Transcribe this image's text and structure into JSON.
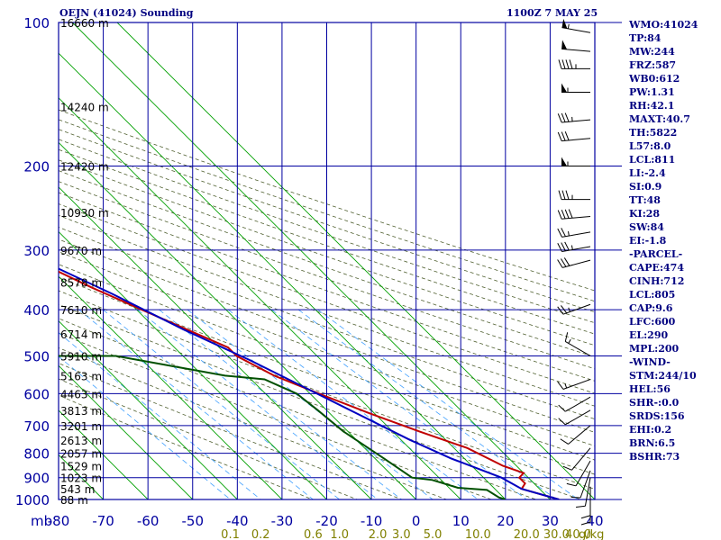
{
  "header": {
    "station": "OEJN (41024) Sounding",
    "time": "1100Z  7 MAY 25"
  },
  "indices": [
    "WMO:41024",
    "TP:84",
    "MW:244",
    "FRZ:587",
    "WB0:612",
    "PW:1.31",
    "RH:42.1",
    "MAXT:40.7",
    "TH:5822",
    "L57:8.0",
    "LCL:811",
    "LI:-2.4",
    "SI:0.9",
    "TT:48",
    "KI:28",
    "SW:84",
    "EI:-1.8",
    "-PARCEL-",
    "CAPE:474",
    "CINH:712",
    "LCL:805",
    "CAP:9.6",
    "LFC:600",
    "EL:290",
    "MPL:200",
    "-WIND-",
    "STM:244/10",
    "HEL:56",
    "SHR-:0.0",
    "SRDS:156",
    "EHI:0.2",
    "BRN:6.5",
    "BSHR:73"
  ],
  "colors": {
    "frame": "#0000a0",
    "isotherm": "#00a000",
    "dry_adiabat": "#506030",
    "mixing_ratio": "#40a0ff",
    "temperature": "#c00000",
    "dewpoint": "#005000",
    "parcel": "#0000c0",
    "index_text": "#000080",
    "mixing_label": "#808000"
  },
  "chart_data": {
    "type": "line",
    "title": "OEJN (41024) Sounding",
    "xlabel": "",
    "ylabel": "mb",
    "x_ticks": [
      -80,
      -70,
      -60,
      -50,
      -40,
      -30,
      -20,
      -10,
      0,
      10,
      20,
      30,
      40
    ],
    "x_tick_labels": [
      "-80",
      "-70",
      "-60",
      "-50",
      "-40",
      "-30",
      "-20",
      "-10",
      "0",
      "10",
      "20",
      "30",
      "40"
    ],
    "pressure_ticks": [
      100,
      200,
      300,
      400,
      500,
      600,
      700,
      800,
      900,
      1000
    ],
    "pressure_tick_labels": [
      "100",
      "200",
      "300",
      "400",
      "500",
      "600",
      "700",
      "800",
      "900",
      "1000"
    ],
    "ylim": [
      100,
      1000
    ],
    "xlim": [
      -80,
      40
    ],
    "y_scale": "log",
    "grid": true,
    "height_labels": [
      {
        "label": "16660 m",
        "p": 100
      },
      {
        "label": "14240 m",
        "p": 150
      },
      {
        "label": "12420 m",
        "p": 200
      },
      {
        "label": "10930 m",
        "p": 250
      },
      {
        "label": "9670 m",
        "p": 300
      },
      {
        "label": "8578 m",
        "p": 350
      },
      {
        "label": "7610 m",
        "p": 400
      },
      {
        "label": "6714 m",
        "p": 450
      },
      {
        "label": "5910 m",
        "p": 500
      },
      {
        "label": "5163 m",
        "p": 550
      },
      {
        "label": "4463 m",
        "p": 600
      },
      {
        "label": "3813 m",
        "p": 650
      },
      {
        "label": "3201 m",
        "p": 700
      },
      {
        "label": "2613 m",
        "p": 750
      },
      {
        "label": "2057 m",
        "p": 800
      },
      {
        "label": "1529 m",
        "p": 850
      },
      {
        "label": "1023 m",
        "p": 900
      },
      {
        "label": "543 m",
        "p": 950
      },
      {
        "label": "88 m",
        "p": 1000
      }
    ],
    "mixing_ratio_labels": [
      "0.1",
      "0.2",
      "0.6",
      "1.0",
      "2.0",
      "3.0",
      "5.0",
      "10.0",
      "20.0",
      "30.0",
      "40.0"
    ],
    "mixing_ratio_unit": "g/kg",
    "series": [
      {
        "id": "temperature",
        "points": [
          {
            "x": -67,
            "p": 100
          },
          {
            "x": -66.5,
            "p": 110
          },
          {
            "x": -65,
            "p": 125
          },
          {
            "x": -56,
            "p": 180
          },
          {
            "x": -52,
            "p": 200
          },
          {
            "x": -48,
            "p": 225
          },
          {
            "x": -40,
            "p": 260
          },
          {
            "x": -35,
            "p": 280
          },
          {
            "x": -31,
            "p": 320
          },
          {
            "x": -25,
            "p": 360
          },
          {
            "x": -16,
            "p": 420
          },
          {
            "x": -8,
            "p": 480
          },
          {
            "x": -8,
            "p": 500
          },
          {
            "x": -4,
            "p": 550
          },
          {
            "x": 2,
            "p": 600
          },
          {
            "x": 9,
            "p": 660
          },
          {
            "x": 16,
            "p": 720
          },
          {
            "x": 23,
            "p": 780
          },
          {
            "x": 27,
            "p": 850
          },
          {
            "x": 30,
            "p": 880
          },
          {
            "x": 28,
            "p": 900
          },
          {
            "x": 28,
            "p": 925
          },
          {
            "x": 26,
            "p": 950
          },
          {
            "x": 32,
            "p": 1000
          }
        ]
      },
      {
        "id": "parcel",
        "points": [
          {
            "x": -80,
            "p": 135
          },
          {
            "x": -54,
            "p": 200
          },
          {
            "x": -38,
            "p": 270
          },
          {
            "x": -33,
            "p": 300
          },
          {
            "x": -22,
            "p": 370
          },
          {
            "x": -14,
            "p": 440
          },
          {
            "x": -6,
            "p": 510
          },
          {
            "x": 0,
            "p": 580
          },
          {
            "x": 6,
            "p": 660
          },
          {
            "x": 12,
            "p": 750
          },
          {
            "x": 17,
            "p": 820
          },
          {
            "x": 24,
            "p": 900
          },
          {
            "x": 26,
            "p": 950
          },
          {
            "x": 32,
            "p": 1000
          }
        ]
      },
      {
        "id": "dewpoint",
        "points": [
          {
            "x": -80,
            "p": 160
          },
          {
            "x": -73,
            "p": 205
          },
          {
            "x": -66,
            "p": 240
          },
          {
            "x": -63,
            "p": 280
          },
          {
            "x": -58,
            "p": 300
          },
          {
            "x": -54,
            "p": 340
          },
          {
            "x": -52,
            "p": 360
          },
          {
            "x": -48,
            "p": 400
          },
          {
            "x": -52,
            "p": 450
          },
          {
            "x": -55,
            "p": 500
          },
          {
            "x": -35,
            "p": 500
          },
          {
            "x": -15,
            "p": 550
          },
          {
            "x": -7,
            "p": 560
          },
          {
            "x": -3,
            "p": 600
          },
          {
            "x": -2,
            "p": 650
          },
          {
            "x": -1,
            "p": 720
          },
          {
            "x": 2,
            "p": 820
          },
          {
            "x": 4,
            "p": 900
          },
          {
            "x": 8,
            "p": 910
          },
          {
            "x": 12,
            "p": 945
          },
          {
            "x": 18,
            "p": 955
          },
          {
            "x": 19,
            "p": 990
          },
          {
            "x": 20,
            "p": 1000
          }
        ]
      }
    ],
    "winds": [
      {
        "p": 105,
        "dir": 280,
        "spd": 55
      },
      {
        "p": 115,
        "dir": 275,
        "spd": 50
      },
      {
        "p": 125,
        "dir": 270,
        "spd": 45
      },
      {
        "p": 140,
        "dir": 270,
        "spd": 55
      },
      {
        "p": 160,
        "dir": 265,
        "spd": 35
      },
      {
        "p": 175,
        "dir": 265,
        "spd": 30
      },
      {
        "p": 200,
        "dir": 270,
        "spd": 55
      },
      {
        "p": 235,
        "dir": 270,
        "spd": 35
      },
      {
        "p": 255,
        "dir": 265,
        "spd": 40
      },
      {
        "p": 275,
        "dir": 260,
        "spd": 25
      },
      {
        "p": 295,
        "dir": 260,
        "spd": 35
      },
      {
        "p": 315,
        "dir": 255,
        "spd": 30
      },
      {
        "p": 390,
        "dir": 250,
        "spd": 25
      },
      {
        "p": 500,
        "dir": 300,
        "spd": 15
      },
      {
        "p": 560,
        "dir": 250,
        "spd": 15
      },
      {
        "p": 610,
        "dir": 240,
        "spd": 10
      },
      {
        "p": 650,
        "dir": 240,
        "spd": 10
      },
      {
        "p": 700,
        "dir": 230,
        "spd": 10
      },
      {
        "p": 780,
        "dir": 220,
        "spd": 10
      },
      {
        "p": 830,
        "dir": 210,
        "spd": 10
      },
      {
        "p": 870,
        "dir": 200,
        "spd": 10
      },
      {
        "p": 900,
        "dir": 190,
        "spd": 10
      },
      {
        "p": 940,
        "dir": 180,
        "spd": 10
      },
      {
        "p": 970,
        "dir": 180,
        "spd": 10
      }
    ]
  }
}
